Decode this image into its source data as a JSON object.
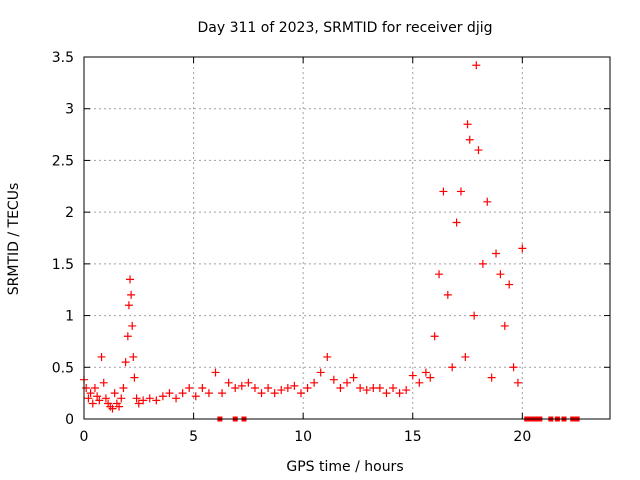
{
  "chart_data": {
    "type": "scatter",
    "title": "Day 311 of 2023, SRMTID for receiver djig",
    "xlabel": "GPS time / hours",
    "ylabel": "SRMTID / TECUs",
    "xlim": [
      0,
      24
    ],
    "ylim": [
      0,
      3.5
    ],
    "xticks": [
      0,
      5,
      10,
      15,
      20
    ],
    "yticks": [
      0,
      0.5,
      1,
      1.5,
      2,
      2.5,
      3,
      3.5
    ],
    "xtick_labels": [
      "0",
      "5",
      "10",
      "15",
      "20"
    ],
    "ytick_labels": [
      "0",
      "0.5",
      "1",
      "1.5",
      "2",
      "2.5",
      "3",
      "3.5"
    ],
    "grid": true,
    "series": [
      {
        "name": "SRMTID",
        "marker": "plus",
        "color": "#ff0000",
        "x": [
          0.0,
          0.1,
          0.2,
          0.3,
          0.4,
          0.5,
          0.6,
          0.7,
          0.8,
          0.9,
          1.0,
          1.1,
          1.2,
          1.3,
          1.4,
          1.5,
          1.6,
          1.7,
          1.8,
          1.9,
          2.0,
          2.05,
          2.1,
          2.15,
          2.2,
          2.25,
          2.3,
          2.4,
          2.5,
          2.7,
          3.0,
          3.3,
          3.6,
          3.9,
          4.2,
          4.5,
          4.8,
          5.1,
          5.4,
          5.7,
          6.0,
          6.3,
          6.6,
          6.9,
          7.2,
          7.5,
          7.8,
          8.1,
          8.4,
          8.7,
          9.0,
          9.3,
          9.6,
          9.9,
          10.2,
          10.5,
          10.8,
          11.1,
          11.4,
          11.7,
          12.0,
          12.3,
          12.6,
          12.9,
          13.2,
          13.5,
          13.8,
          14.1,
          14.4,
          14.7,
          15.0,
          15.3,
          15.6,
          15.8,
          16.0,
          16.2,
          16.4,
          16.6,
          16.8,
          17.0,
          17.2,
          17.4,
          17.5,
          17.6,
          17.8,
          17.9,
          18.0,
          18.2,
          18.4,
          18.6,
          18.8,
          19.0,
          19.2,
          19.4,
          19.6,
          19.8,
          20.0,
          6.2,
          6.9,
          7.3,
          20.2,
          20.4,
          20.6,
          20.8,
          21.3,
          21.6,
          21.9,
          22.3,
          22.5
        ],
        "y": [
          0.38,
          0.3,
          0.2,
          0.25,
          0.15,
          0.3,
          0.22,
          0.18,
          0.6,
          0.35,
          0.2,
          0.15,
          0.12,
          0.1,
          0.25,
          0.15,
          0.12,
          0.2,
          0.3,
          0.55,
          0.8,
          1.1,
          1.35,
          1.2,
          0.9,
          0.6,
          0.4,
          0.2,
          0.15,
          0.18,
          0.2,
          0.18,
          0.22,
          0.25,
          0.2,
          0.25,
          0.3,
          0.22,
          0.3,
          0.25,
          0.45,
          0.25,
          0.35,
          0.3,
          0.32,
          0.35,
          0.3,
          0.25,
          0.3,
          0.25,
          0.28,
          0.3,
          0.32,
          0.25,
          0.3,
          0.35,
          0.45,
          0.6,
          0.38,
          0.3,
          0.35,
          0.4,
          0.3,
          0.28,
          0.3,
          0.3,
          0.25,
          0.3,
          0.25,
          0.28,
          0.42,
          0.35,
          0.45,
          0.4,
          0.8,
          1.4,
          2.2,
          1.2,
          0.5,
          1.9,
          2.2,
          0.6,
          2.85,
          2.7,
          1.0,
          3.42,
          2.6,
          1.5,
          2.1,
          0.4,
          1.6,
          1.4,
          0.9,
          1.3,
          0.5,
          0.35,
          1.65,
          0.0,
          0.0,
          0.0,
          0.0,
          0.0,
          0.0,
          0.0,
          0.0,
          0.0,
          0.0,
          0.0,
          0.0
        ]
      }
    ]
  }
}
